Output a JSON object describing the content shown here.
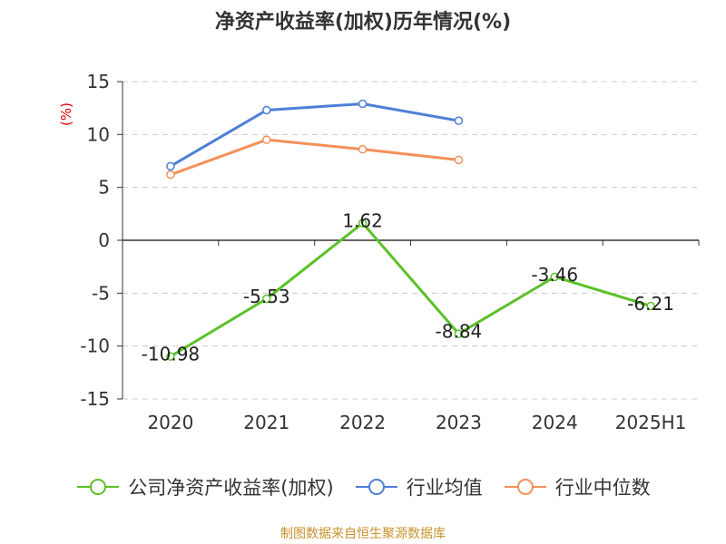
{
  "chart_data": {
    "type": "line",
    "title": "净资产收益率(加权)历年情况(%)",
    "ylabel": "(%)",
    "categories": [
      "2020",
      "2021",
      "2022",
      "2023",
      "2024",
      "2025H1"
    ],
    "ylim": [
      -15,
      15
    ],
    "yticks": [
      15,
      10,
      5,
      0,
      -5,
      -10,
      -15
    ],
    "grid": true,
    "legend_position": "bottom",
    "series": [
      {
        "name": "公司净资产收益率(加权)",
        "color": "#5cc128",
        "values": [
          -10.98,
          -5.53,
          1.62,
          -8.84,
          -3.46,
          -6.21
        ],
        "labels": [
          "-10.98",
          "-5.53",
          "1.62",
          "-8.84",
          "-3.46",
          "-6.21"
        ]
      },
      {
        "name": "行业均值",
        "color": "#4e7fd9",
        "values": [
          7.0,
          12.3,
          12.9,
          11.3,
          null,
          null
        ]
      },
      {
        "name": "行业中位数",
        "color": "#f5905a",
        "values": [
          6.2,
          9.5,
          8.6,
          7.6,
          null,
          null
        ]
      }
    ]
  },
  "footer": {
    "source": "制图数据来自恒生聚源数据库"
  }
}
